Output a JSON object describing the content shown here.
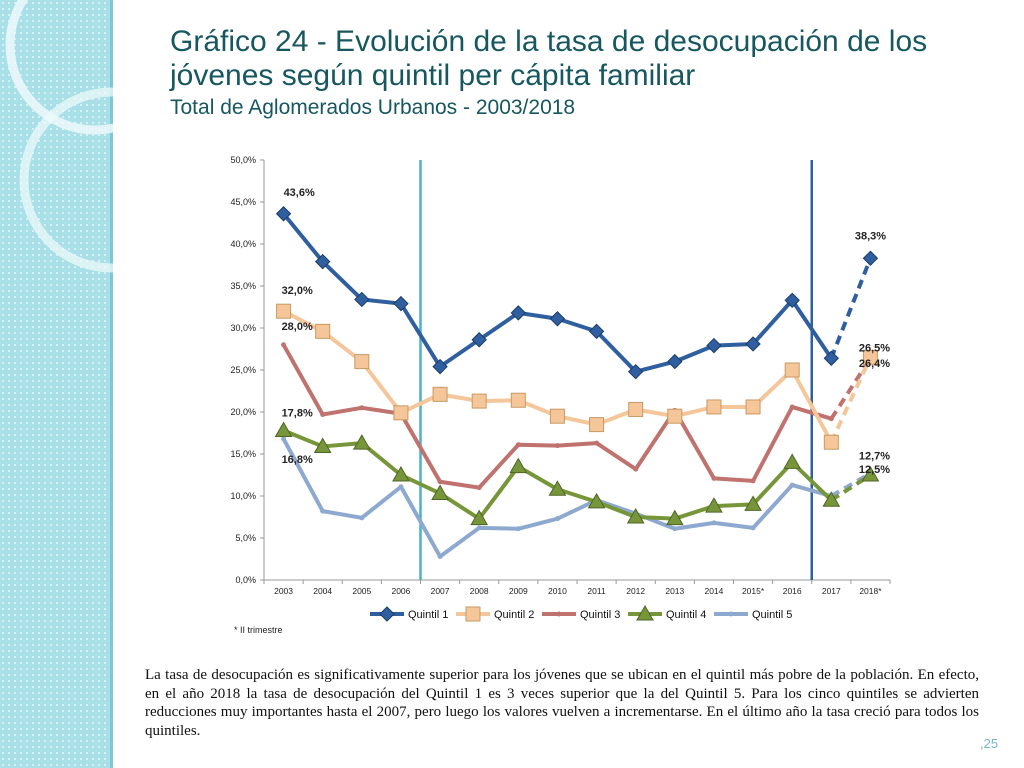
{
  "title": {
    "line1": "Gráfico 24 - Evolución de la tasa de desocupación de los jóvenes según quintil per cápita familiar",
    "line2": "Total de Aglomerados Urbanos - 2003/2018"
  },
  "chart_data": {
    "type": "line",
    "categories": [
      "2003",
      "2004",
      "2005",
      "2006",
      "2007",
      "2008",
      "2009",
      "2010",
      "2011",
      "2012",
      "2013",
      "2014",
      "2015*",
      "2016",
      "2017",
      "2018*"
    ],
    "ylim": [
      0,
      50
    ],
    "yticks": [
      "0,0%",
      "5,0%",
      "10,0%",
      "15,0%",
      "20,0%",
      "25,0%",
      "30,0%",
      "35,0%",
      "40,0%",
      "45,0%",
      "50,0%"
    ],
    "series": [
      {
        "name": "Quintil 1",
        "color": "#2f5f9e",
        "marker": "diamond",
        "values": [
          43.6,
          37.9,
          33.4,
          32.9,
          25.4,
          28.6,
          31.8,
          31.1,
          29.6,
          24.8,
          26.0,
          27.9,
          28.1,
          33.3,
          26.4,
          38.3
        ]
      },
      {
        "name": "Quintil 2",
        "color": "#f5c699",
        "marker": "square",
        "values": [
          32.0,
          29.6,
          26.0,
          19.9,
          22.1,
          21.3,
          21.4,
          19.5,
          18.5,
          20.3,
          19.5,
          20.6,
          20.6,
          25.0,
          16.4,
          26.5
        ]
      },
      {
        "name": "Quintil 3",
        "color": "#c0726e",
        "marker": "none",
        "values": [
          28.0,
          19.7,
          20.5,
          19.8,
          11.7,
          11.0,
          16.1,
          16.0,
          16.3,
          13.2,
          20.2,
          12.1,
          11.8,
          20.6,
          19.2,
          26.4
        ]
      },
      {
        "name": "Quintil 4",
        "color": "#77963a",
        "marker": "triangle",
        "values": [
          17.8,
          15.9,
          16.3,
          12.5,
          10.3,
          7.3,
          13.5,
          10.8,
          9.3,
          7.5,
          7.3,
          8.8,
          9.0,
          14.0,
          9.5,
          12.5
        ]
      },
      {
        "name": "Quintil 5",
        "color": "#8ea9d0",
        "marker": "none",
        "values": [
          16.8,
          8.2,
          7.4,
          11.1,
          2.8,
          6.2,
          6.1,
          7.3,
          9.5,
          7.9,
          6.1,
          6.8,
          6.2,
          11.3,
          10.0,
          12.7
        ]
      }
    ],
    "annotations": [
      {
        "series": 0,
        "index": 0,
        "text": "43,6%"
      },
      {
        "series": 1,
        "index": 0,
        "text": "32,0%"
      },
      {
        "series": 2,
        "index": 0,
        "text": "28,0%"
      },
      {
        "series": 3,
        "index": 0,
        "text": "17,8%"
      },
      {
        "series": 4,
        "index": 0,
        "text": "16,8%"
      },
      {
        "series": 0,
        "index": 15,
        "text": "38,3%"
      },
      {
        "series": 1,
        "index": 15,
        "text": "26,5%"
      },
      {
        "series": 2,
        "index": 15,
        "text": "26,4%"
      },
      {
        "series": 4,
        "index": 15,
        "text": "12,7%"
      },
      {
        "series": 3,
        "index": 15,
        "text": "12,5%"
      }
    ],
    "vlines": [
      {
        "after": "2006",
        "color": "#4bb3c6"
      },
      {
        "after": "2016",
        "color": "#2f5f9e"
      }
    ],
    "dashed_last_segment": true,
    "legend_position": "bottom"
  },
  "note": "* II trimestre",
  "paragraph": "La tasa de desocupación es significativamente superior para los jóvenes que se ubican en el quintil más pobre de la población. En efecto, en el año 2018 la tasa de desocupación del Quintil 1 es 3 veces superior que la del Quintil 5.  Para los cinco quintiles se advierten reducciones muy importantes hasta el 2007, pero luego los valores vuelven a incrementarse. En el último año la tasa creció para todos los quintiles.",
  "page_number": ",25"
}
